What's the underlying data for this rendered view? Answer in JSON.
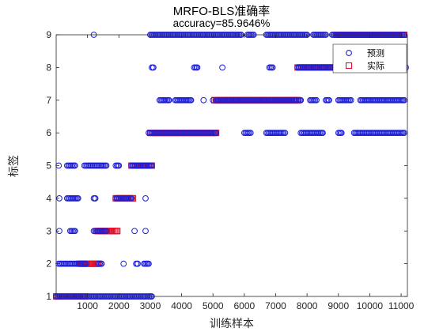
{
  "chart_data": {
    "type": "scatter",
    "title": "MRFO-BLS准确率",
    "subtitle": "accuracy=85.9646%",
    "xlabel": "训练样本",
    "ylabel": "标签",
    "xlim": [
      0,
      11200
    ],
    "ylim": [
      1,
      9
    ],
    "xticks": [
      1000,
      2000,
      3000,
      4000,
      5000,
      6000,
      7000,
      8000,
      9000,
      10000,
      11000
    ],
    "yticks": [
      1,
      2,
      3,
      4,
      5,
      6,
      7,
      8,
      9
    ],
    "grid": false,
    "legend_position": "top-right",
    "colors": {
      "predicted": "#1f1fd6",
      "actual": "#e0102a"
    },
    "series": [
      {
        "name": "预测",
        "marker": "circle",
        "segments": [
          {
            "y": 1,
            "x": [
              0,
              3050
            ]
          },
          {
            "y": 2,
            "x": [
              80,
              950
            ]
          },
          {
            "y": 2,
            "x": [
              1350,
              1450
            ]
          },
          {
            "y": 2,
            "x": [
              2150,
              2150
            ]
          },
          {
            "y": 2,
            "x": [
              2550,
              2600
            ]
          },
          {
            "y": 2,
            "x": [
              2800,
              2950
            ]
          },
          {
            "y": 3,
            "x": [
              100,
              100
            ]
          },
          {
            "y": 3,
            "x": [
              450,
              600
            ]
          },
          {
            "y": 3,
            "x": [
              1200,
              1600
            ]
          },
          {
            "y": 3,
            "x": [
              2500,
              2500
            ]
          },
          {
            "y": 3,
            "x": [
              2850,
              2850
            ]
          },
          {
            "y": 4,
            "x": [
              100,
              100
            ]
          },
          {
            "y": 4,
            "x": [
              350,
              700
            ]
          },
          {
            "y": 4,
            "x": [
              1200,
              1250
            ]
          },
          {
            "y": 4,
            "x": [
              1900,
              2400
            ]
          },
          {
            "y": 4,
            "x": [
              2850,
              2850
            ]
          },
          {
            "y": 5,
            "x": [
              80,
              80
            ]
          },
          {
            "y": 5,
            "x": [
              350,
              600
            ]
          },
          {
            "y": 5,
            "x": [
              900,
              1600
            ]
          },
          {
            "y": 5,
            "x": [
              1900,
              2000
            ]
          },
          {
            "y": 5,
            "x": [
              2400,
              3050
            ]
          },
          {
            "y": 6,
            "x": [
              2950,
              5100
            ]
          },
          {
            "y": 6,
            "x": [
              6000,
              6200
            ]
          },
          {
            "y": 6,
            "x": [
              6700,
              7300
            ]
          },
          {
            "y": 6,
            "x": [
              7800,
              8500
            ]
          },
          {
            "y": 6,
            "x": [
              9000,
              9100
            ]
          },
          {
            "y": 6,
            "x": [
              9500,
              11100
            ]
          },
          {
            "y": 7,
            "x": [
              3300,
              3600
            ]
          },
          {
            "y": 7,
            "x": [
              3800,
              4300
            ]
          },
          {
            "y": 7,
            "x": [
              4700,
              4700
            ]
          },
          {
            "y": 7,
            "x": [
              5000,
              5000
            ]
          },
          {
            "y": 7,
            "x": [
              5100,
              7800
            ]
          },
          {
            "y": 7,
            "x": [
              8100,
              8300
            ]
          },
          {
            "y": 7,
            "x": [
              8600,
              8700
            ]
          },
          {
            "y": 7,
            "x": [
              9000,
              9400
            ]
          },
          {
            "y": 7,
            "x": [
              9700,
              11100
            ]
          },
          {
            "y": 8,
            "x": [
              3050,
              3100
            ]
          },
          {
            "y": 8,
            "x": [
              4400,
              4500
            ]
          },
          {
            "y": 8,
            "x": [
              5300,
              5300
            ]
          },
          {
            "y": 8,
            "x": [
              6800,
              6900
            ]
          },
          {
            "y": 8,
            "x": [
              7700,
              9050
            ]
          },
          {
            "y": 8,
            "x": [
              11150,
              11150
            ]
          },
          {
            "y": 9,
            "x": [
              1200,
              1200
            ]
          },
          {
            "y": 9,
            "x": [
              3000,
              5900
            ]
          },
          {
            "y": 9,
            "x": [
              6100,
              6300
            ]
          },
          {
            "y": 9,
            "x": [
              6700,
              8000
            ]
          },
          {
            "y": 9,
            "x": [
              8200,
              8600
            ]
          },
          {
            "y": 9,
            "x": [
              8800,
              11100
            ]
          }
        ]
      },
      {
        "name": "实际",
        "marker": "square",
        "segments": [
          {
            "y": 1,
            "x": [
              0,
              900
            ]
          },
          {
            "y": 2,
            "x": [
              750,
              1350
            ]
          },
          {
            "y": 3,
            "x": [
              1300,
              1950
            ]
          },
          {
            "y": 4,
            "x": [
              1900,
              2450
            ]
          },
          {
            "y": 5,
            "x": [
              2400,
              3050
            ]
          },
          {
            "y": 6,
            "x": [
              3000,
              5100
            ]
          },
          {
            "y": 7,
            "x": [
              5050,
              7700
            ]
          },
          {
            "y": 8,
            "x": [
              7700,
              8950
            ]
          },
          {
            "y": 9,
            "x": [
              8950,
              11100
            ]
          }
        ]
      }
    ]
  }
}
